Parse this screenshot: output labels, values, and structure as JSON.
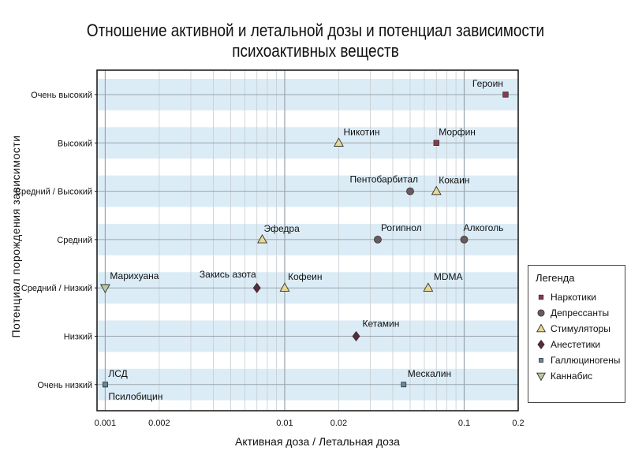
{
  "chart_data": {
    "type": "scatter",
    "title": "Отношение активной и летальной дозы и потенциал зависимости психоактивных веществ",
    "xlabel": "Активная доза / Летальная доза",
    "ylabel": "Потенциал порождения зависимости",
    "x_scale": "log",
    "xlim": [
      0.0009,
      0.2
    ],
    "x_ticks": [
      {
        "value": 0.001,
        "label": "0.001"
      },
      {
        "value": 0.002,
        "label": "0.002"
      },
      {
        "value": 0.01,
        "label": "0.01"
      },
      {
        "value": 0.02,
        "label": "0.02"
      },
      {
        "value": 0.1,
        "label": "0.1"
      },
      {
        "value": 0.2,
        "label": "0.2"
      }
    ],
    "y_categories": [
      "Очень низкий",
      "Низкий",
      "Средний / Низкий",
      "Средний",
      "Средний / Высокий",
      "Высокий",
      "Очень высокий"
    ],
    "grid": true,
    "legend_position": "right",
    "legend_title": "Легенда",
    "series": [
      {
        "name": "Наркотики",
        "marker": "square",
        "color": "#8b3a4a",
        "points": [
          {
            "label": "Героин",
            "x": 0.17,
            "y": "Очень высокий"
          },
          {
            "label": "Морфин",
            "x": 0.07,
            "y": "Высокий"
          }
        ]
      },
      {
        "name": "Депрессанты",
        "marker": "circle",
        "color": "#6a5a5e",
        "points": [
          {
            "label": "Пентобарбитал",
            "x": 0.05,
            "y": "Средний / Высокий"
          },
          {
            "label": "Рогипнол",
            "x": 0.033,
            "y": "Средний"
          },
          {
            "label": "Алкоголь",
            "x": 0.1,
            "y": "Средний"
          }
        ]
      },
      {
        "name": "Стимуляторы",
        "marker": "triangle-up",
        "color": "#e8d890",
        "points": [
          {
            "label": "Никотин",
            "x": 0.02,
            "y": "Высокий"
          },
          {
            "label": "Кокаин",
            "x": 0.07,
            "y": "Средний / Высокий"
          },
          {
            "label": "Эфедра",
            "x": 0.0075,
            "y": "Средний"
          },
          {
            "label": "Кофеин",
            "x": 0.01,
            "y": "Средний / Низкий"
          },
          {
            "label": "MDMA",
            "x": 0.063,
            "y": "Средний / Низкий"
          }
        ]
      },
      {
        "name": "Анестетики",
        "marker": "diamond",
        "color": "#5a2a3a",
        "points": [
          {
            "label": "Закись азота",
            "x": 0.007,
            "y": "Средний / Низкий"
          },
          {
            "label": "Кетамин",
            "x": 0.025,
            "y": "Низкий"
          }
        ]
      },
      {
        "name": "Галлюциногены",
        "marker": "square-small",
        "color": "#5f8aa0",
        "points": [
          {
            "label": "ЛСД",
            "x": 0.001,
            "y": "Очень низкий"
          },
          {
            "label": "Псилобицин",
            "x": 0.001,
            "y": "Очень низкий"
          },
          {
            "label": "Мескалин",
            "x": 0.046,
            "y": "Очень низкий"
          }
        ]
      },
      {
        "name": "Каннабис",
        "marker": "triangle-down",
        "color": "#b8c8a0",
        "points": [
          {
            "label": "Марихуана",
            "x": 0.001,
            "y": "Средний / Низкий"
          }
        ]
      }
    ]
  }
}
